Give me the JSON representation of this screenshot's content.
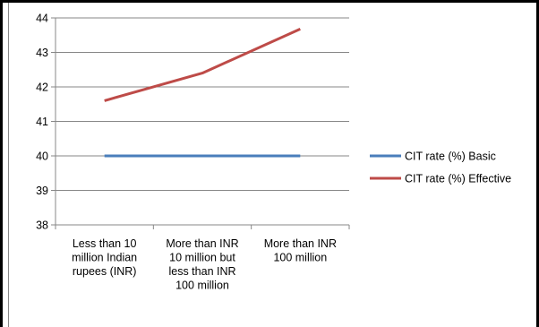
{
  "chart_data": {
    "type": "line",
    "categories": [
      [
        "Less than 10",
        "million Indian",
        "rupees (INR)"
      ],
      [
        "More than INR",
        "10 million but",
        "less than INR",
        "100 million"
      ],
      [
        "More than INR",
        "100 million"
      ]
    ],
    "series": [
      {
        "name": "CIT rate (%)  Basic",
        "values": [
          40,
          40,
          40
        ],
        "color": "#4a7ebb"
      },
      {
        "name": "CIT rate (%)  Effective",
        "values": [
          41.6,
          42.4,
          43.68
        ],
        "color": "#be4b48"
      }
    ],
    "ylim": [
      38,
      44
    ],
    "yticks": [
      38,
      39,
      40,
      41,
      42,
      43,
      44
    ],
    "grid": true,
    "legend": "right"
  }
}
